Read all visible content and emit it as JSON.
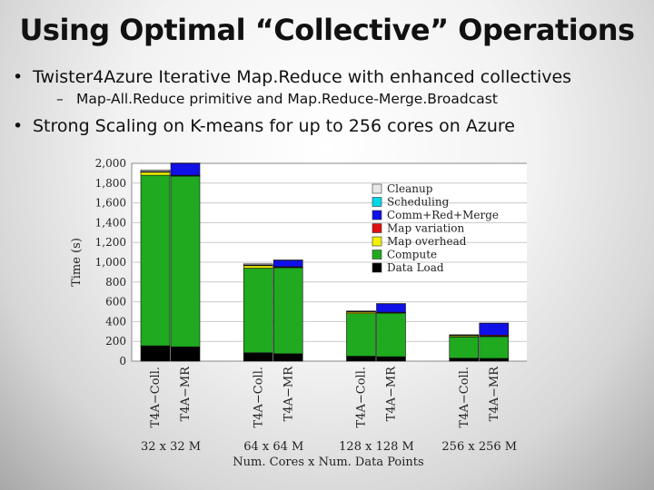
{
  "slide": {
    "title": "Using Optimal “Collective” Operations",
    "bullets": [
      {
        "text": "Twister4Azure Iterative Map.Reduce with enhanced collectives",
        "sub": "Map-All.Reduce primitive and Map.Reduce-Merge.Broadcast"
      },
      {
        "text": "Strong Scaling on K-means for up to 256 cores on Azure"
      }
    ]
  },
  "chart_data": {
    "type": "bar",
    "stacked": true,
    "ylabel": "Time (s)",
    "xlabel": "Num. Cores x Num. Data Points",
    "ylim": [
      0,
      2000
    ],
    "yticks": [
      0,
      200,
      400,
      600,
      800,
      1000,
      1200,
      1400,
      1600,
      1800,
      2000
    ],
    "ytick_labels": [
      "0",
      "200",
      "400",
      "600",
      "800",
      "1,000",
      "1,200",
      "1,400",
      "1,600",
      "1,800",
      "2,000"
    ],
    "grid": true,
    "legend_position": "right",
    "groups": [
      "32 x 32 M",
      "64 x 64 M",
      "128 x 128 M",
      "256 x 256 M"
    ],
    "categories": [
      "T4A−Coll.",
      "T4A−MR",
      "T4A−Coll.",
      "T4A−MR",
      "T4A−Coll.",
      "T4A−MR",
      "T4A−Coll.",
      "T4A−MR"
    ],
    "series": [
      {
        "name": "Data Load",
        "color": "#000000",
        "values": [
          155,
          145,
          85,
          75,
          50,
          45,
          30,
          28
        ]
      },
      {
        "name": "Compute",
        "color": "#1faa1f",
        "values": [
          1725,
          1725,
          855,
          870,
          430,
          440,
          215,
          220
        ]
      },
      {
        "name": "Map overhead",
        "color": "#f2f200",
        "values": [
          30,
          5,
          25,
          5,
          15,
          5,
          10,
          5
        ]
      },
      {
        "name": "Map variation",
        "color": "#e01010",
        "values": [
          5,
          5,
          5,
          5,
          5,
          5,
          5,
          10
        ]
      },
      {
        "name": "Comm+Red+Merge",
        "color": "#1010e8",
        "values": [
          0,
          120,
          0,
          65,
          0,
          85,
          0,
          120
        ]
      },
      {
        "name": "Scheduling",
        "color": "#00d8e8",
        "values": [
          3,
          3,
          3,
          3,
          2,
          2,
          2,
          2
        ]
      },
      {
        "name": "Cleanup",
        "color": "#e8e8e8",
        "values": [
          15,
          0,
          10,
          0,
          5,
          0,
          5,
          0
        ]
      }
    ]
  }
}
